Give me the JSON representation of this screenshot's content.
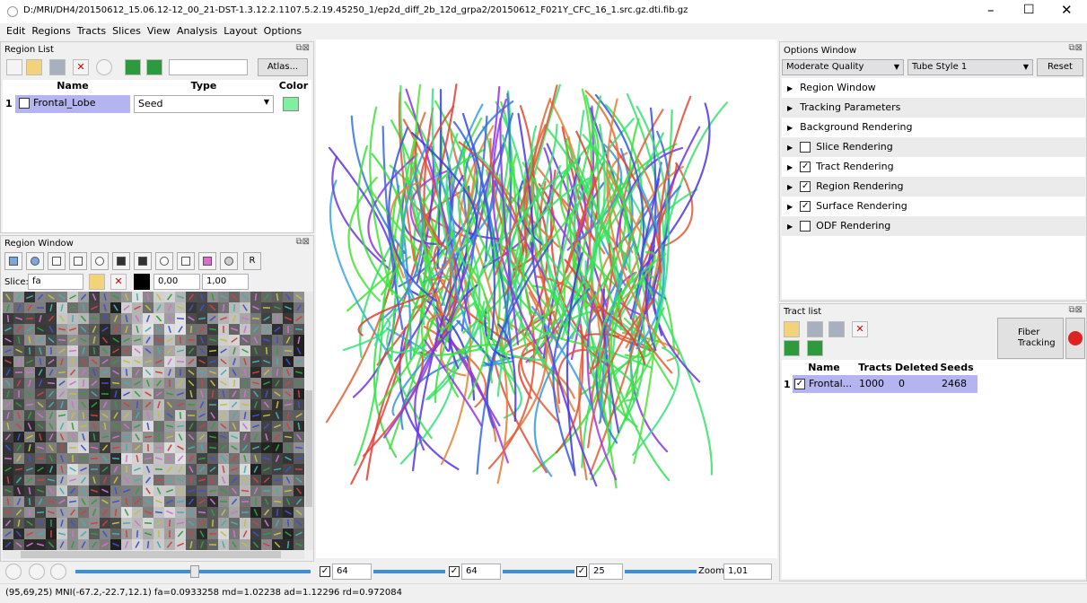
{
  "window": {
    "title": "D:/MRI/DH4/20150612_15.06.12-12_00_21-DST-1.3.12.2.1107.5.2.19.45250_1/ep2d_diff_2b_12d_grpa2/20150612_F021Y_CFC_16_1.src.gz.dti.fib.gz"
  },
  "menu": [
    "Edit",
    "Regions",
    "Tracts",
    "Slices",
    "View",
    "Analysis",
    "Layout",
    "Options"
  ],
  "region_list": {
    "title": "Region List",
    "atlas_button": "Atlas...",
    "columns": [
      "Name",
      "Type",
      "Color"
    ],
    "rows": [
      {
        "index": "1",
        "name": "Frontal_Lobe",
        "type": "Seed",
        "color": "#80f0a0",
        "checked": false
      }
    ]
  },
  "region_window": {
    "title": "Region Window",
    "slice_label": "Slice:",
    "slice_value": "fa",
    "min": "0,00",
    "max": "1,00",
    "tool_r": "R"
  },
  "options_window": {
    "title": "Options Window",
    "quality": "Moderate Quality",
    "style": "Tube Style 1",
    "reset": "Reset",
    "sections": [
      {
        "label": "Region Window",
        "checkbox": null
      },
      {
        "label": "Tracking Parameters",
        "checkbox": null
      },
      {
        "label": "Background Rendering",
        "checkbox": null
      },
      {
        "label": "Slice Rendering",
        "checkbox": false
      },
      {
        "label": "Tract Rendering",
        "checkbox": true
      },
      {
        "label": "Region Rendering",
        "checkbox": true
      },
      {
        "label": "Surface Rendering",
        "checkbox": true
      },
      {
        "label": "ODF Rendering",
        "checkbox": false
      }
    ]
  },
  "tract_list": {
    "title": "Tract list",
    "fiber_tracking": [
      "Fiber",
      "Tracking"
    ],
    "columns": [
      "Name",
      "Tracts",
      "Deleted",
      "Seeds"
    ],
    "rows": [
      {
        "index": "1",
        "checked": true,
        "name": "Frontal...",
        "tracts": 1000,
        "deleted": 0,
        "seeds": 2468
      }
    ]
  },
  "slice_controls": {
    "x": "64",
    "y": "64",
    "z": "25",
    "zoom_label": "Zoom",
    "zoom": "1,01"
  },
  "status": "(95,69,25) MNI(-67.2,-22.7,12.1)  fa=0.0933258 md=1.02238 ad=1.12296 rd=0.972084"
}
